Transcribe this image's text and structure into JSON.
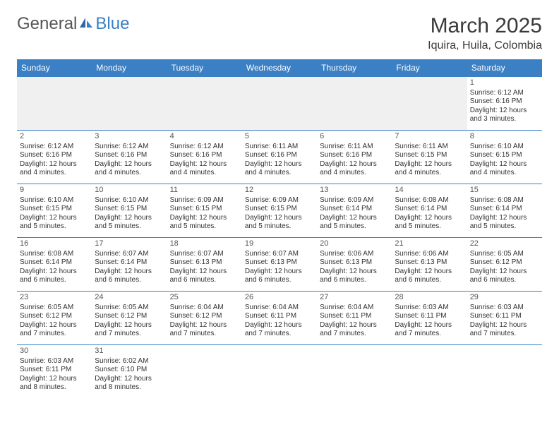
{
  "logo": {
    "part1": "General",
    "part2": "Blue"
  },
  "title": "March 2025",
  "location": "Iquira, Huila, Colombia",
  "colors": {
    "header_bg": "#3b7fc4",
    "header_text": "#ffffff",
    "row_border": "#3b7fc4",
    "empty_bg": "#f0f0f0",
    "text": "#333333",
    "logo_gray": "#555555",
    "logo_blue": "#3b7fc4"
  },
  "day_headers": [
    "Sunday",
    "Monday",
    "Tuesday",
    "Wednesday",
    "Thursday",
    "Friday",
    "Saturday"
  ],
  "weeks": [
    [
      null,
      null,
      null,
      null,
      null,
      null,
      {
        "n": "1",
        "sr": "6:12 AM",
        "ss": "6:16 PM",
        "dl": "12 hours and 3 minutes."
      }
    ],
    [
      {
        "n": "2",
        "sr": "6:12 AM",
        "ss": "6:16 PM",
        "dl": "12 hours and 4 minutes."
      },
      {
        "n": "3",
        "sr": "6:12 AM",
        "ss": "6:16 PM",
        "dl": "12 hours and 4 minutes."
      },
      {
        "n": "4",
        "sr": "6:12 AM",
        "ss": "6:16 PM",
        "dl": "12 hours and 4 minutes."
      },
      {
        "n": "5",
        "sr": "6:11 AM",
        "ss": "6:16 PM",
        "dl": "12 hours and 4 minutes."
      },
      {
        "n": "6",
        "sr": "6:11 AM",
        "ss": "6:16 PM",
        "dl": "12 hours and 4 minutes."
      },
      {
        "n": "7",
        "sr": "6:11 AM",
        "ss": "6:15 PM",
        "dl": "12 hours and 4 minutes."
      },
      {
        "n": "8",
        "sr": "6:10 AM",
        "ss": "6:15 PM",
        "dl": "12 hours and 4 minutes."
      }
    ],
    [
      {
        "n": "9",
        "sr": "6:10 AM",
        "ss": "6:15 PM",
        "dl": "12 hours and 5 minutes."
      },
      {
        "n": "10",
        "sr": "6:10 AM",
        "ss": "6:15 PM",
        "dl": "12 hours and 5 minutes."
      },
      {
        "n": "11",
        "sr": "6:09 AM",
        "ss": "6:15 PM",
        "dl": "12 hours and 5 minutes."
      },
      {
        "n": "12",
        "sr": "6:09 AM",
        "ss": "6:15 PM",
        "dl": "12 hours and 5 minutes."
      },
      {
        "n": "13",
        "sr": "6:09 AM",
        "ss": "6:14 PM",
        "dl": "12 hours and 5 minutes."
      },
      {
        "n": "14",
        "sr": "6:08 AM",
        "ss": "6:14 PM",
        "dl": "12 hours and 5 minutes."
      },
      {
        "n": "15",
        "sr": "6:08 AM",
        "ss": "6:14 PM",
        "dl": "12 hours and 5 minutes."
      }
    ],
    [
      {
        "n": "16",
        "sr": "6:08 AM",
        "ss": "6:14 PM",
        "dl": "12 hours and 6 minutes."
      },
      {
        "n": "17",
        "sr": "6:07 AM",
        "ss": "6:14 PM",
        "dl": "12 hours and 6 minutes."
      },
      {
        "n": "18",
        "sr": "6:07 AM",
        "ss": "6:13 PM",
        "dl": "12 hours and 6 minutes."
      },
      {
        "n": "19",
        "sr": "6:07 AM",
        "ss": "6:13 PM",
        "dl": "12 hours and 6 minutes."
      },
      {
        "n": "20",
        "sr": "6:06 AM",
        "ss": "6:13 PM",
        "dl": "12 hours and 6 minutes."
      },
      {
        "n": "21",
        "sr": "6:06 AM",
        "ss": "6:13 PM",
        "dl": "12 hours and 6 minutes."
      },
      {
        "n": "22",
        "sr": "6:05 AM",
        "ss": "6:12 PM",
        "dl": "12 hours and 6 minutes."
      }
    ],
    [
      {
        "n": "23",
        "sr": "6:05 AM",
        "ss": "6:12 PM",
        "dl": "12 hours and 7 minutes."
      },
      {
        "n": "24",
        "sr": "6:05 AM",
        "ss": "6:12 PM",
        "dl": "12 hours and 7 minutes."
      },
      {
        "n": "25",
        "sr": "6:04 AM",
        "ss": "6:12 PM",
        "dl": "12 hours and 7 minutes."
      },
      {
        "n": "26",
        "sr": "6:04 AM",
        "ss": "6:11 PM",
        "dl": "12 hours and 7 minutes."
      },
      {
        "n": "27",
        "sr": "6:04 AM",
        "ss": "6:11 PM",
        "dl": "12 hours and 7 minutes."
      },
      {
        "n": "28",
        "sr": "6:03 AM",
        "ss": "6:11 PM",
        "dl": "12 hours and 7 minutes."
      },
      {
        "n": "29",
        "sr": "6:03 AM",
        "ss": "6:11 PM",
        "dl": "12 hours and 7 minutes."
      }
    ],
    [
      {
        "n": "30",
        "sr": "6:03 AM",
        "ss": "6:11 PM",
        "dl": "12 hours and 8 minutes."
      },
      {
        "n": "31",
        "sr": "6:02 AM",
        "ss": "6:10 PM",
        "dl": "12 hours and 8 minutes."
      },
      null,
      null,
      null,
      null,
      null
    ]
  ],
  "labels": {
    "sunrise": "Sunrise: ",
    "sunset": "Sunset: ",
    "daylight": "Daylight: "
  }
}
